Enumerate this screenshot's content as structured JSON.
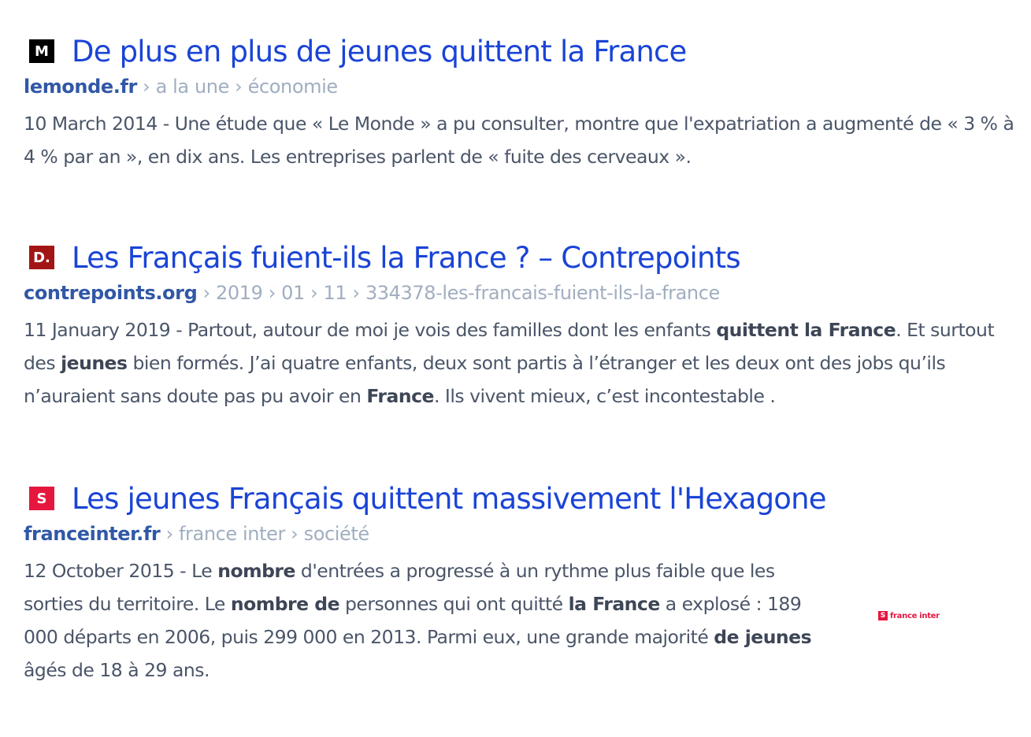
{
  "results": [
    {
      "title": "De plus en plus de jeunes quittent la France",
      "domain": "lemonde.fr",
      "path": " › a la une › économie",
      "favicon": "le-monde-icon",
      "favicon_color": "#000000",
      "favicon_glyph": "M",
      "snippet": [
        {
          "t": "10 March 2014 - Une étude que « Le Monde » a pu consulter, montre que l'expatriation a augmenté de « 3 % à 4 % par an », en dix ans. Les entreprises parlent de « fuite des cerveaux ».",
          "b": false
        }
      ]
    },
    {
      "title": "Les Français fuient-ils la France ? – Contrepoints",
      "domain": "contrepoints.org",
      "path": " › 2019 › 01 › 11 › 334378-les-francais-fuient-ils-la-france",
      "favicon": "contrepoints-icon",
      "favicon_color": "#a31515",
      "favicon_glyph": "D.",
      "snippet": [
        {
          "t": "11 January 2019 - Partout, autour de moi je vois des familles dont les enfants ",
          "b": false
        },
        {
          "t": "quittent la France",
          "b": true
        },
        {
          "t": ". Et surtout des ",
          "b": false
        },
        {
          "t": "jeunes",
          "b": true
        },
        {
          "t": " bien formés. J’ai quatre enfants, deux sont partis à l’étranger et les deux ont des jobs qu’ils n’auraient sans doute pas pu avoir en ",
          "b": false
        },
        {
          "t": "France",
          "b": true
        },
        {
          "t": ". Ils vivent mieux, c’est incontestable .",
          "b": false
        }
      ]
    },
    {
      "title": "Les jeunes Français quittent massivement l'Hexagone",
      "domain": "franceinter.fr",
      "path": " › france inter › société",
      "favicon": "france-inter-icon",
      "favicon_color": "#e5173f",
      "favicon_glyph": "S",
      "snippet": [
        {
          "t": "12 October 2015 - Le ",
          "b": false
        },
        {
          "t": "nombre",
          "b": true
        },
        {
          "t": " d'entrées a progressé à un rythme plus faible que les sorties du territoire. Le ",
          "b": false
        },
        {
          "t": "nombre de",
          "b": true
        },
        {
          "t": " personnes qui ont quitté ",
          "b": false
        },
        {
          "t": "la France",
          "b": true
        },
        {
          "t": " a explosé : 189 000 départs en 2006, puis 299 000 en 2013. Parmi eux, une grande majorité ",
          "b": false
        },
        {
          "t": "de jeunes",
          "b": true
        },
        {
          "t": " âgés de 18 à 29 ans.",
          "b": false
        }
      ],
      "thumbnail": {
        "text": "france inter"
      }
    }
  ]
}
